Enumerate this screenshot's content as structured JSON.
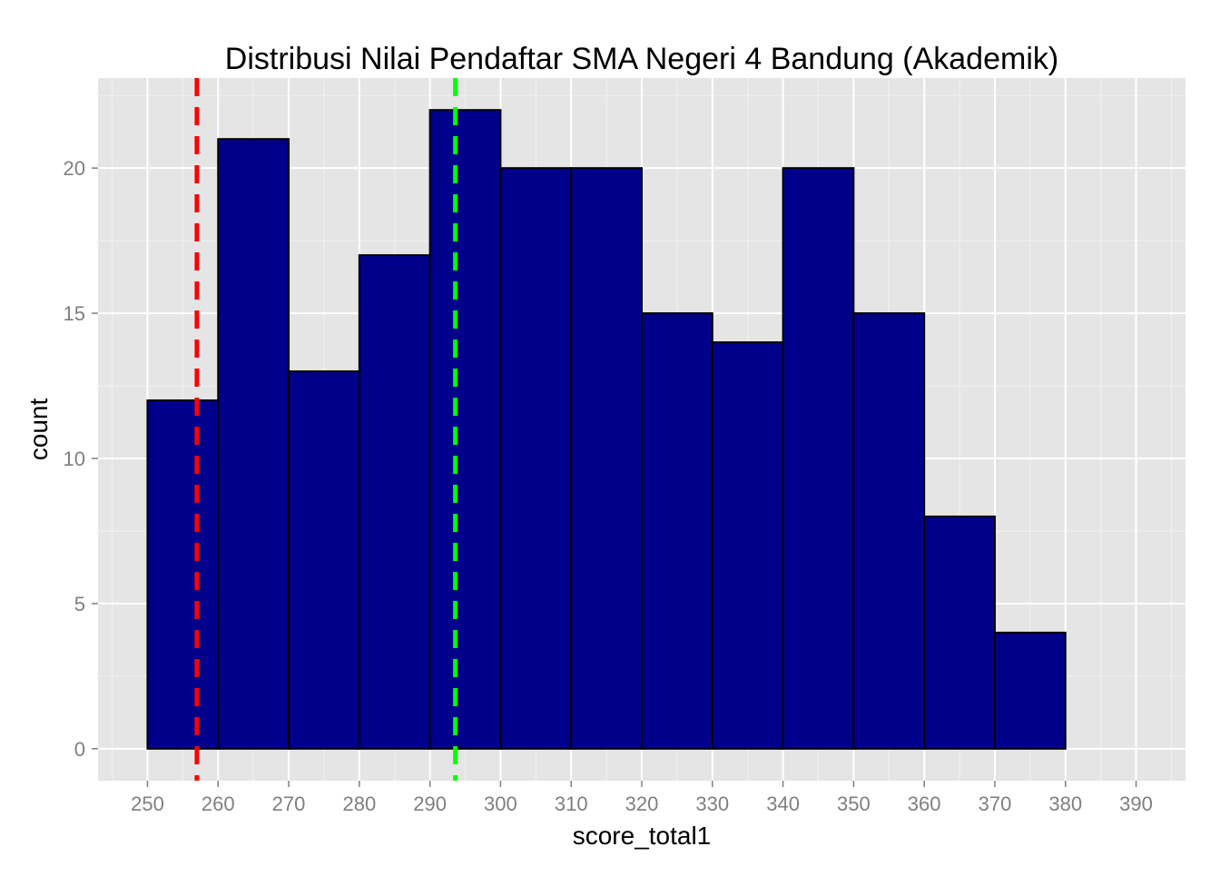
{
  "chart_data": {
    "type": "bar",
    "title": "Distribusi Nilai Pendaftar SMA Negeri 4 Bandung (Akademik)",
    "xlabel": "score_total1",
    "ylabel": "count",
    "bins": [
      {
        "from": 250,
        "to": 260,
        "count": 12
      },
      {
        "from": 260,
        "to": 270,
        "count": 21
      },
      {
        "from": 270,
        "to": 280,
        "count": 13
      },
      {
        "from": 280,
        "to": 290,
        "count": 17
      },
      {
        "from": 290,
        "to": 300,
        "count": 22
      },
      {
        "from": 300,
        "to": 310,
        "count": 20
      },
      {
        "from": 310,
        "to": 320,
        "count": 20
      },
      {
        "from": 320,
        "to": 330,
        "count": 15
      },
      {
        "from": 330,
        "to": 340,
        "count": 14
      },
      {
        "from": 340,
        "to": 350,
        "count": 20
      },
      {
        "from": 350,
        "to": 360,
        "count": 15
      },
      {
        "from": 360,
        "to": 370,
        "count": 8
      },
      {
        "from": 370,
        "to": 380,
        "count": 4
      },
      {
        "from": 380,
        "to": 390,
        "count": 0
      }
    ],
    "xlim": [
      243,
      397
    ],
    "ylim": [
      -1.1,
      23.1
    ],
    "x_ticks": [
      "250",
      "260",
      "270",
      "280",
      "290",
      "300",
      "310",
      "320",
      "330",
      "340",
      "350",
      "360",
      "370",
      "380",
      "390"
    ],
    "y_ticks": [
      "0",
      "5",
      "10",
      "15",
      "20"
    ],
    "reference_lines": [
      {
        "x": 257,
        "color": "#ff0000",
        "style": "dashed"
      },
      {
        "x": 293.6,
        "color": "#00ff00",
        "style": "dashed"
      }
    ],
    "bar_fill": "#00008b",
    "bar_outline": "#000000",
    "panel_background": "#e5e5e5",
    "grid": true,
    "legend": "none"
  }
}
